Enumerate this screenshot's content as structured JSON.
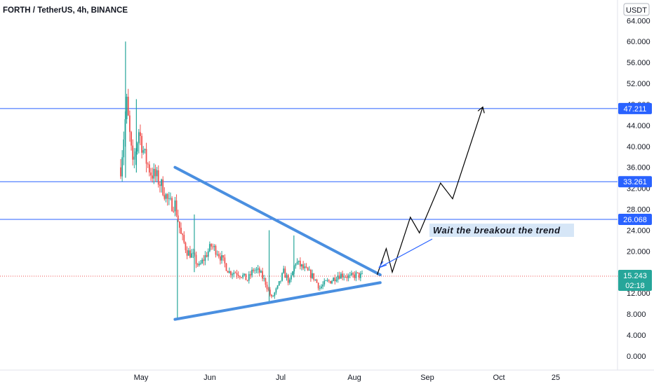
{
  "header": {
    "title": "FORTH / TetherUS, 4h, BINANCE"
  },
  "chart_data": {
    "type": "candlestick",
    "title": "FORTH / TetherUS, 4h, BINANCE",
    "ylabel": "USDT",
    "ylim": [
      -2,
      66
    ],
    "grid": false,
    "y_ticks": [
      "0.000",
      "4.000",
      "8.000",
      "12.000",
      "16.000",
      "20.000",
      "24.000",
      "28.000",
      "32.000",
      "36.000",
      "40.000",
      "44.000",
      "48.000",
      "52.000",
      "56.000",
      "60.000",
      "64.000"
    ],
    "x_ticks": [
      "May",
      "Jun",
      "Jul",
      "Aug",
      "Sep",
      "Oct",
      "25"
    ],
    "price_path": [
      [
        0,
        36
      ],
      [
        1,
        48
      ],
      [
        2,
        36
      ],
      [
        3,
        43
      ],
      [
        4,
        38
      ],
      [
        5,
        35
      ],
      [
        6,
        34
      ],
      [
        7,
        32
      ],
      [
        8,
        29
      ],
      [
        9,
        29
      ],
      [
        10,
        23
      ],
      [
        11,
        20
      ],
      [
        12,
        19
      ],
      [
        13,
        17
      ],
      [
        14,
        19
      ],
      [
        15,
        21
      ],
      [
        16,
        20
      ],
      [
        17,
        18
      ],
      [
        18,
        16
      ],
      [
        19,
        16
      ],
      [
        20,
        15.5
      ],
      [
        21,
        14.5
      ],
      [
        22,
        16.5
      ],
      [
        23,
        16
      ],
      [
        24,
        14
      ],
      [
        25,
        11
      ],
      [
        26,
        13
      ],
      [
        27,
        16
      ],
      [
        28,
        14
      ],
      [
        29,
        18
      ],
      [
        30,
        17
      ],
      [
        31,
        16
      ],
      [
        32,
        15
      ],
      [
        33,
        13
      ],
      [
        34,
        14
      ],
      [
        35,
        14.5
      ],
      [
        36,
        15.5
      ],
      [
        37,
        15.5
      ],
      [
        38,
        15
      ],
      [
        39,
        15.5
      ],
      [
        40,
        15.2
      ]
    ],
    "spikes": [
      {
        "x": 0.8,
        "high": 60,
        "low": 34
      },
      {
        "x": 2.6,
        "high": 49,
        "low": 35
      },
      {
        "x": 9.4,
        "high": 26,
        "low": 7
      },
      {
        "x": 12.2,
        "high": 27,
        "low": 16
      },
      {
        "x": 24.6,
        "high": 24,
        "low": 10
      },
      {
        "x": 28.7,
        "high": 23,
        "low": 15
      }
    ],
    "horizontal_levels": [
      {
        "value": 47.211,
        "label": "47.211"
      },
      {
        "value": 33.261,
        "label": "33.261"
      },
      {
        "value": 26.068,
        "label": "26.068"
      }
    ],
    "last_price": {
      "value": 15.243,
      "label": "15.243",
      "countdown": "02:18"
    },
    "triangle": {
      "upper": {
        "from": [
          9,
          36
        ],
        "to": [
          43,
          15.5
        ]
      },
      "lower": {
        "from": [
          9,
          7
        ],
        "to": [
          43,
          14
        ]
      }
    },
    "projection": [
      [
        42.5,
        15.5
      ],
      [
        44,
        20.5
      ],
      [
        45,
        16
      ],
      [
        48,
        26.5
      ],
      [
        49.5,
        23.5
      ],
      [
        53,
        33
      ],
      [
        55,
        30
      ],
      [
        60,
        47.5
      ]
    ],
    "annotation": {
      "text": "Wait the breakout the trend"
    },
    "colors": {
      "up": "#26a69a",
      "down": "#ef5350",
      "level": "#2962ff",
      "triangle": "#4a8fe0",
      "price": "#26a69a"
    }
  }
}
